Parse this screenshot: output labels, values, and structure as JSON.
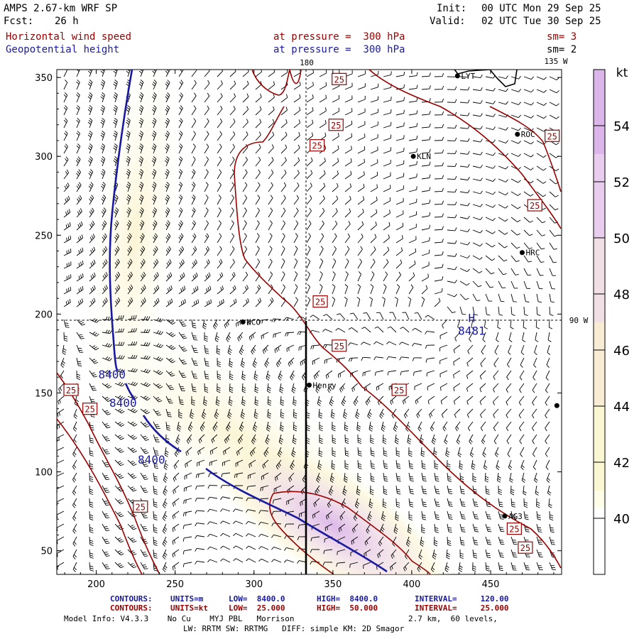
{
  "header": {
    "model_title": "AMPS 2.67-km WRF SP",
    "fcst_label": "Fcst:",
    "fcst_value": "26 h",
    "init_label": "Init:",
    "init_value": "00 UTC Mon 29 Sep 25",
    "valid_label": "Valid:",
    "valid_value": "02 UTC Tue 30 Sep 25"
  },
  "fields": {
    "field1_name": "Horizontal wind speed",
    "field1_level": "at pressure =  300 hPa",
    "field1_smooth": "sm= 3",
    "field2_name": "Geopotential height",
    "field2_level": "at pressure =  300 hPa",
    "field2_smooth": "sm= 2"
  },
  "colors": {
    "wind_contour": "#990000",
    "height_contour": "#1a1aa0",
    "barb": "#000000",
    "scale": [
      "#fdfde8",
      "#fbf7d2",
      "#f8edd4",
      "#f1dfe6",
      "#e8cdee",
      "#dcb6ea"
    ]
  },
  "chart_data": {
    "type": "map",
    "axes": {
      "x_range": [
        175,
        495
      ],
      "y_range": [
        35,
        355
      ],
      "x_ticks": [
        "200",
        "250",
        "300",
        "350",
        "400",
        "450"
      ],
      "y_ticks": [
        "50",
        "100",
        "150",
        "200",
        "250",
        "300",
        "350"
      ],
      "x_tick_values": [
        200,
        250,
        300,
        350,
        400,
        450
      ],
      "y_tick_values": [
        50,
        100,
        150,
        200,
        250,
        300,
        350
      ]
    },
    "meridian_labels": [
      "180",
      "135 W",
      "90 W"
    ],
    "colorbar": {
      "unit": "kt",
      "labels": [
        "54",
        "52",
        "50",
        "48",
        "46",
        "44",
        "42",
        "40"
      ],
      "values": [
        54,
        52,
        50,
        48,
        46,
        44,
        42,
        40
      ],
      "range": [
        38,
        56
      ]
    },
    "stations": [
      {
        "name": "LYT",
        "x": 429,
        "y": 351
      },
      {
        "name": "ROC",
        "x": 467,
        "y": 314
      },
      {
        "name": "KLN",
        "x": 401,
        "y": 300
      },
      {
        "name": "HRC",
        "x": 470,
        "y": 239
      },
      {
        "name": "NCO",
        "x": 293,
        "y": 195
      },
      {
        "name": "Henry",
        "x": 335,
        "y": 155
      },
      {
        "name": "AG3",
        "x": 459,
        "y": 72
      },
      {
        "name": "",
        "x": 492,
        "y": 142
      }
    ],
    "high_center": {
      "label": "H",
      "value": "8481",
      "x": 438,
      "y": 194
    },
    "height_contours": {
      "units": "m",
      "value": 8400,
      "labels": [
        "8400",
        "8400",
        "8400"
      ],
      "label_positions": [
        [
          210,
          162
        ],
        [
          217,
          144
        ],
        [
          235,
          108
        ]
      ]
    },
    "wind_contours": {
      "units": "kt",
      "value": 25,
      "label": "25",
      "label_positions": [
        [
          354,
          349
        ],
        [
          352,
          320
        ],
        [
          340,
          307
        ],
        [
          489,
          313
        ],
        [
          478,
          269
        ],
        [
          342,
          208
        ],
        [
          354,
          180
        ],
        [
          392,
          152
        ],
        [
          184,
          152
        ],
        [
          196,
          140
        ],
        [
          228,
          78
        ],
        [
          465,
          64
        ],
        [
          472,
          52
        ]
      ]
    },
    "contour_info": {
      "line1": {
        "label": "CONTOURS:",
        "units": "UNITS=m",
        "low": "LOW=  8400.0",
        "high": "HIGH=  8400.0",
        "interval": "INTERVAL=     120.00"
      },
      "line2": {
        "label": "CONTOURS:",
        "units": "UNITS=kt",
        "low": "LOW=  25.000",
        "high": "HIGH=  50.000",
        "interval": "INTERVAL=     25.000"
      }
    }
  },
  "footer": {
    "model_info": "Model Info: V4.3.3    No Cu    MYJ PBL   Morrison",
    "grid_info": "2.7 km,  60 levels,",
    "physics_info": "LW: RRTM SW: RRTMG   DIFF: simple KM: 2D Smagor"
  }
}
